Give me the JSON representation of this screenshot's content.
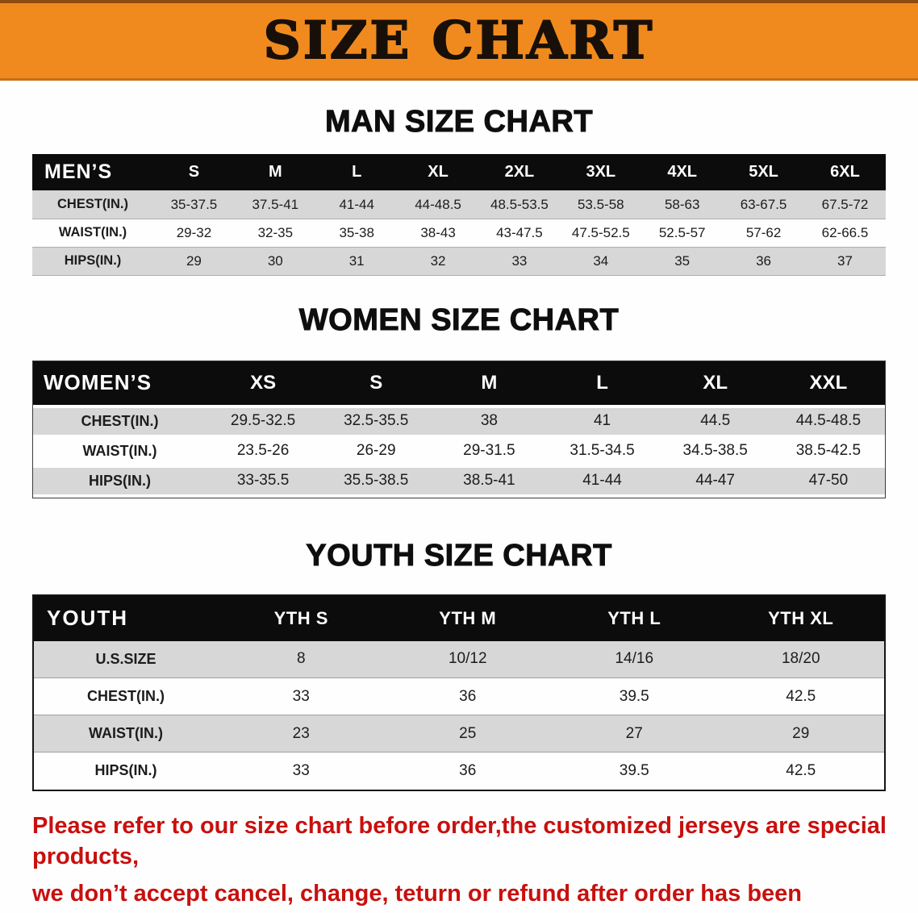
{
  "banner": {
    "title": "SIZE CHART"
  },
  "colors": {
    "banner_orange": "#f18a1e",
    "table_header_black": "#0c0c0c",
    "stripe_gray": "#d7d7d7",
    "footnote_red": "#c8100e"
  },
  "chart_data": [
    {
      "type": "table",
      "title": "MAN SIZE CHART",
      "columns": [
        "MEN’S",
        "S",
        "M",
        "L",
        "XL",
        "2XL",
        "3XL",
        "4XL",
        "5XL",
        "6XL"
      ],
      "rows": [
        [
          "CHEST(IN.)",
          "35-37.5",
          "37.5-41",
          "41-44",
          "44-48.5",
          "48.5-53.5",
          "53.5-58",
          "58-63",
          "63-67.5",
          "67.5-72"
        ],
        [
          "WAIST(IN.)",
          "29-32",
          "32-35",
          "35-38",
          "38-43",
          "43-47.5",
          "47.5-52.5",
          "52.5-57",
          "57-62",
          "62-66.5"
        ],
        [
          "HIPS(IN.)",
          "29",
          "30",
          "31",
          "32",
          "33",
          "34",
          "35",
          "36",
          "37"
        ]
      ]
    },
    {
      "type": "table",
      "title": "WOMEN SIZE CHART",
      "columns": [
        "WOMEN’S",
        "XS",
        "S",
        "M",
        "L",
        "XL",
        "XXL"
      ],
      "rows": [
        [
          "CHEST(IN.)",
          "29.5-32.5",
          "32.5-35.5",
          "38",
          "41",
          "44.5",
          "44.5-48.5"
        ],
        [
          "WAIST(IN.)",
          "23.5-26",
          "26-29",
          "29-31.5",
          "31.5-34.5",
          "34.5-38.5",
          "38.5-42.5"
        ],
        [
          "HIPS(IN.)",
          "33-35.5",
          "35.5-38.5",
          "38.5-41",
          "41-44",
          "44-47",
          "47-50"
        ]
      ]
    },
    {
      "type": "table",
      "title": "YOUTH SIZE CHART",
      "columns": [
        "YOUTH",
        "YTH S",
        "YTH M",
        "YTH L",
        "YTH XL"
      ],
      "rows": [
        [
          "U.S.SIZE",
          "8",
          "10/12",
          "14/16",
          "18/20"
        ],
        [
          "CHEST(IN.)",
          "33",
          "36",
          "39.5",
          "42.5"
        ],
        [
          "WAIST(IN.)",
          "23",
          "25",
          "27",
          "29"
        ],
        [
          "HIPS(IN.)",
          "33",
          "36",
          "39.5",
          "42.5"
        ]
      ]
    }
  ],
  "footnote": {
    "line1": "Please refer to our size chart before order,the customized jerseys are special products,",
    "line2": "we don’t accept cancel, change, teturn or refund after order has been placed!"
  }
}
